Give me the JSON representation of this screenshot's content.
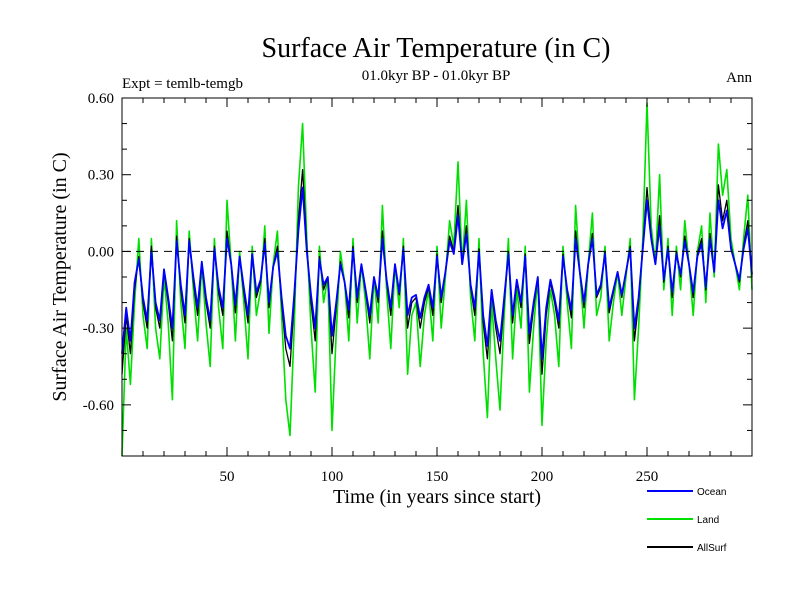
{
  "chart_data": {
    "type": "line",
    "title": "Surface Air Temperature (in C)",
    "subtitle": "01.0kyr BP - 01.0kyr BP",
    "left_label": "Expt = temlb-temgb",
    "right_label": "Ann",
    "xlabel": "Time (in years since start)",
    "ylabel": "Surface Air Temperature (in C)",
    "xlim": [
      0,
      300
    ],
    "ylim": [
      -0.8,
      0.6
    ],
    "xticks": [
      50,
      100,
      150,
      200,
      250
    ],
    "xtick_labels": [
      "50",
      "100",
      "150",
      "200",
      "250"
    ],
    "yticks": [
      0.6,
      0.3,
      0.0,
      -0.3,
      -0.6
    ],
    "ytick_labels": [
      "0.60",
      "0.30",
      "0.00",
      "-0.30",
      "-0.60"
    ],
    "reference_line": 0.0,
    "legend_position": "bottom-right",
    "series": [
      {
        "name": "Land",
        "color": "#00e000",
        "x": [
          0,
          2,
          4,
          6,
          8,
          10,
          12,
          14,
          16,
          18,
          20,
          22,
          24,
          26,
          28,
          30,
          32,
          34,
          36,
          38,
          40,
          42,
          44,
          46,
          48,
          50,
          52,
          54,
          56,
          58,
          60,
          62,
          64,
          66,
          68,
          70,
          72,
          74,
          76,
          78,
          80,
          82,
          84,
          86,
          88,
          90,
          92,
          94,
          96,
          98,
          100,
          102,
          104,
          106,
          108,
          110,
          112,
          114,
          116,
          118,
          120,
          122,
          124,
          126,
          128,
          130,
          132,
          134,
          136,
          138,
          140,
          142,
          144,
          146,
          148,
          150,
          152,
          154,
          156,
          158,
          160,
          162,
          164,
          166,
          168,
          170,
          172,
          174,
          176,
          178,
          180,
          182,
          184,
          186,
          188,
          190,
          192,
          194,
          196,
          198,
          200,
          202,
          204,
          206,
          208,
          210,
          212,
          214,
          216,
          218,
          220,
          222,
          224,
          226,
          228,
          230,
          232,
          234,
          236,
          238,
          240,
          242,
          244,
          246,
          248,
          250,
          252,
          254,
          256,
          258,
          260,
          262,
          264,
          266,
          268,
          270,
          272,
          274,
          276,
          278,
          280,
          282,
          284,
          286,
          288,
          290,
          292,
          294,
          296,
          298,
          300
        ],
        "y": [
          -0.8,
          -0.3,
          -0.52,
          -0.2,
          0.05,
          -0.25,
          -0.38,
          0.05,
          -0.3,
          -0.42,
          -0.1,
          -0.28,
          -0.58,
          0.12,
          -0.2,
          -0.38,
          0.08,
          -0.15,
          -0.35,
          -0.05,
          -0.28,
          -0.45,
          0.05,
          -0.22,
          -0.38,
          0.2,
          -0.05,
          -0.35,
          0.0,
          -0.2,
          -0.42,
          0.02,
          -0.25,
          -0.15,
          0.1,
          -0.32,
          -0.05,
          0.08,
          -0.25,
          -0.58,
          -0.72,
          -0.3,
          0.25,
          0.5,
          0.05,
          -0.3,
          -0.55,
          0.02,
          -0.2,
          -0.1,
          -0.7,
          -0.32,
          0.0,
          -0.12,
          -0.35,
          0.05,
          -0.28,
          -0.05,
          -0.2,
          -0.42,
          -0.1,
          -0.28,
          0.18,
          -0.15,
          -0.38,
          -0.05,
          -0.22,
          0.05,
          -0.48,
          -0.25,
          -0.2,
          -0.45,
          -0.25,
          -0.15,
          -0.35,
          0.02,
          -0.3,
          -0.1,
          0.12,
          0.02,
          0.35,
          -0.05,
          0.2,
          -0.18,
          -0.35,
          0.05,
          -0.4,
          -0.65,
          -0.2,
          -0.42,
          -0.62,
          -0.25,
          0.05,
          -0.42,
          -0.15,
          -0.3,
          0.02,
          -0.55,
          -0.3,
          -0.1,
          -0.68,
          -0.35,
          -0.15,
          -0.25,
          -0.45,
          0.02,
          -0.2,
          -0.38,
          0.18,
          -0.08,
          -0.3,
          -0.05,
          0.15,
          -0.25,
          -0.18,
          0.02,
          -0.35,
          -0.2,
          -0.08,
          -0.25,
          -0.1,
          0.05,
          -0.58,
          -0.3,
          0.05,
          0.58,
          0.1,
          -0.05,
          0.3,
          -0.15,
          0.05,
          -0.25,
          0.02,
          -0.15,
          0.12,
          -0.05,
          -0.25,
          0.0,
          0.1,
          -0.2,
          0.15,
          -0.1,
          0.42,
          0.22,
          0.32,
          0.05,
          -0.05,
          -0.15,
          0.05,
          0.22,
          -0.15
        ]
      },
      {
        "name": "AllSurf",
        "color": "#000000",
        "x": [
          0,
          2,
          4,
          6,
          8,
          10,
          12,
          14,
          16,
          18,
          20,
          22,
          24,
          26,
          28,
          30,
          32,
          34,
          36,
          38,
          40,
          42,
          44,
          46,
          48,
          50,
          52,
          54,
          56,
          58,
          60,
          62,
          64,
          66,
          68,
          70,
          72,
          74,
          76,
          78,
          80,
          82,
          84,
          86,
          88,
          90,
          92,
          94,
          96,
          98,
          100,
          102,
          104,
          106,
          108,
          110,
          112,
          114,
          116,
          118,
          120,
          122,
          124,
          126,
          128,
          130,
          132,
          134,
          136,
          138,
          140,
          142,
          144,
          146,
          148,
          150,
          152,
          154,
          156,
          158,
          160,
          162,
          164,
          166,
          168,
          170,
          172,
          174,
          176,
          178,
          180,
          182,
          184,
          186,
          188,
          190,
          192,
          194,
          196,
          198,
          200,
          202,
          204,
          206,
          208,
          210,
          212,
          214,
          216,
          218,
          220,
          222,
          224,
          226,
          228,
          230,
          232,
          234,
          236,
          238,
          240,
          242,
          244,
          246,
          248,
          250,
          252,
          254,
          256,
          258,
          260,
          262,
          264,
          266,
          268,
          270,
          272,
          274,
          276,
          278,
          280,
          282,
          284,
          286,
          288,
          290,
          292,
          294,
          296,
          298,
          300
        ],
        "y": [
          -0.48,
          -0.25,
          -0.4,
          -0.15,
          -0.02,
          -0.2,
          -0.3,
          0.02,
          -0.22,
          -0.3,
          -0.08,
          -0.2,
          -0.35,
          0.06,
          -0.15,
          -0.28,
          0.05,
          -0.12,
          -0.25,
          -0.05,
          -0.2,
          -0.3,
          0.02,
          -0.16,
          -0.25,
          0.08,
          -0.05,
          -0.24,
          -0.02,
          -0.16,
          -0.28,
          -0.01,
          -0.18,
          -0.12,
          0.05,
          -0.22,
          -0.06,
          0.02,
          -0.2,
          -0.38,
          -0.45,
          -0.2,
          0.12,
          0.32,
          0.02,
          -0.2,
          -0.35,
          -0.02,
          -0.15,
          -0.1,
          -0.4,
          -0.22,
          -0.04,
          -0.12,
          -0.26,
          0.02,
          -0.2,
          -0.05,
          -0.16,
          -0.28,
          -0.1,
          -0.2,
          0.08,
          -0.12,
          -0.25,
          -0.05,
          -0.17,
          0.02,
          -0.3,
          -0.2,
          -0.18,
          -0.3,
          -0.2,
          -0.14,
          -0.25,
          -0.01,
          -0.2,
          -0.08,
          0.06,
          0.0,
          0.18,
          -0.05,
          0.1,
          -0.14,
          -0.25,
          0.01,
          -0.28,
          -0.42,
          -0.16,
          -0.3,
          -0.4,
          -0.2,
          0.0,
          -0.28,
          -0.12,
          -0.22,
          -0.01,
          -0.36,
          -0.22,
          -0.1,
          -0.48,
          -0.25,
          -0.12,
          -0.2,
          -0.3,
          -0.01,
          -0.16,
          -0.26,
          0.08,
          -0.08,
          -0.22,
          -0.05,
          0.07,
          -0.18,
          -0.14,
          0.0,
          -0.24,
          -0.16,
          -0.08,
          -0.18,
          -0.08,
          0.02,
          -0.35,
          -0.2,
          0.02,
          0.25,
          0.06,
          -0.05,
          0.14,
          -0.12,
          0.02,
          -0.18,
          0.0,
          -0.1,
          0.06,
          -0.05,
          -0.18,
          -0.01,
          0.05,
          -0.15,
          0.07,
          -0.08,
          0.26,
          0.12,
          0.2,
          0.02,
          -0.05,
          -0.12,
          0.02,
          0.12,
          -0.1
        ]
      },
      {
        "name": "Ocean",
        "color": "#0000ff",
        "x": [
          0,
          2,
          4,
          6,
          8,
          10,
          12,
          14,
          16,
          18,
          20,
          22,
          24,
          26,
          28,
          30,
          32,
          34,
          36,
          38,
          40,
          42,
          44,
          46,
          48,
          50,
          52,
          54,
          56,
          58,
          60,
          62,
          64,
          66,
          68,
          70,
          72,
          74,
          76,
          78,
          80,
          82,
          84,
          86,
          88,
          90,
          92,
          94,
          96,
          98,
          100,
          102,
          104,
          106,
          108,
          110,
          112,
          114,
          116,
          118,
          120,
          122,
          124,
          126,
          128,
          130,
          132,
          134,
          136,
          138,
          140,
          142,
          144,
          146,
          148,
          150,
          152,
          154,
          156,
          158,
          160,
          162,
          164,
          166,
          168,
          170,
          172,
          174,
          176,
          178,
          180,
          182,
          184,
          186,
          188,
          190,
          192,
          194,
          196,
          198,
          200,
          202,
          204,
          206,
          208,
          210,
          212,
          214,
          216,
          218,
          220,
          222,
          224,
          226,
          228,
          230,
          232,
          234,
          236,
          238,
          240,
          242,
          244,
          246,
          248,
          250,
          252,
          254,
          256,
          258,
          260,
          262,
          264,
          266,
          268,
          270,
          272,
          274,
          276,
          278,
          280,
          282,
          284,
          286,
          288,
          290,
          292,
          294,
          296,
          298,
          300
        ],
        "y": [
          -0.4,
          -0.22,
          -0.35,
          -0.12,
          -0.03,
          -0.18,
          -0.27,
          0.0,
          -0.2,
          -0.27,
          -0.07,
          -0.18,
          -0.3,
          0.04,
          -0.13,
          -0.25,
          0.04,
          -0.1,
          -0.22,
          -0.04,
          -0.18,
          -0.27,
          0.01,
          -0.14,
          -0.22,
          0.05,
          -0.05,
          -0.21,
          -0.02,
          -0.14,
          -0.25,
          -0.01,
          -0.16,
          -0.11,
          0.03,
          -0.2,
          -0.06,
          0.0,
          -0.18,
          -0.33,
          -0.38,
          -0.17,
          0.08,
          0.25,
          0.0,
          -0.17,
          -0.3,
          -0.03,
          -0.13,
          -0.1,
          -0.33,
          -0.2,
          -0.05,
          -0.12,
          -0.23,
          0.01,
          -0.18,
          -0.05,
          -0.15,
          -0.25,
          -0.1,
          -0.18,
          0.05,
          -0.11,
          -0.22,
          -0.05,
          -0.16,
          0.01,
          -0.25,
          -0.18,
          -0.17,
          -0.26,
          -0.18,
          -0.13,
          -0.22,
          -0.02,
          -0.18,
          -0.08,
          0.04,
          -0.01,
          0.14,
          -0.05,
          0.07,
          -0.13,
          -0.22,
          0.0,
          -0.25,
          -0.37,
          -0.15,
          -0.27,
          -0.35,
          -0.18,
          -0.01,
          -0.25,
          -0.11,
          -0.2,
          -0.02,
          -0.32,
          -0.2,
          -0.1,
          -0.42,
          -0.22,
          -0.11,
          -0.18,
          -0.27,
          -0.02,
          -0.15,
          -0.23,
          0.05,
          -0.08,
          -0.2,
          -0.05,
          0.05,
          -0.17,
          -0.13,
          -0.01,
          -0.22,
          -0.15,
          -0.08,
          -0.17,
          -0.08,
          0.01,
          -0.3,
          -0.18,
          0.01,
          0.2,
          0.05,
          -0.05,
          0.1,
          -0.11,
          0.01,
          -0.16,
          -0.01,
          -0.09,
          0.04,
          -0.05,
          -0.16,
          -0.02,
          0.03,
          -0.14,
          0.05,
          -0.08,
          0.2,
          0.09,
          0.16,
          0.01,
          -0.05,
          -0.11,
          0.01,
          0.09,
          -0.09
        ]
      }
    ]
  },
  "legend": {
    "items": [
      {
        "label": "Ocean",
        "color": "#0000ff"
      },
      {
        "label": "Land",
        "color": "#00e000"
      },
      {
        "label": "AllSurf",
        "color": "#000000"
      }
    ]
  }
}
